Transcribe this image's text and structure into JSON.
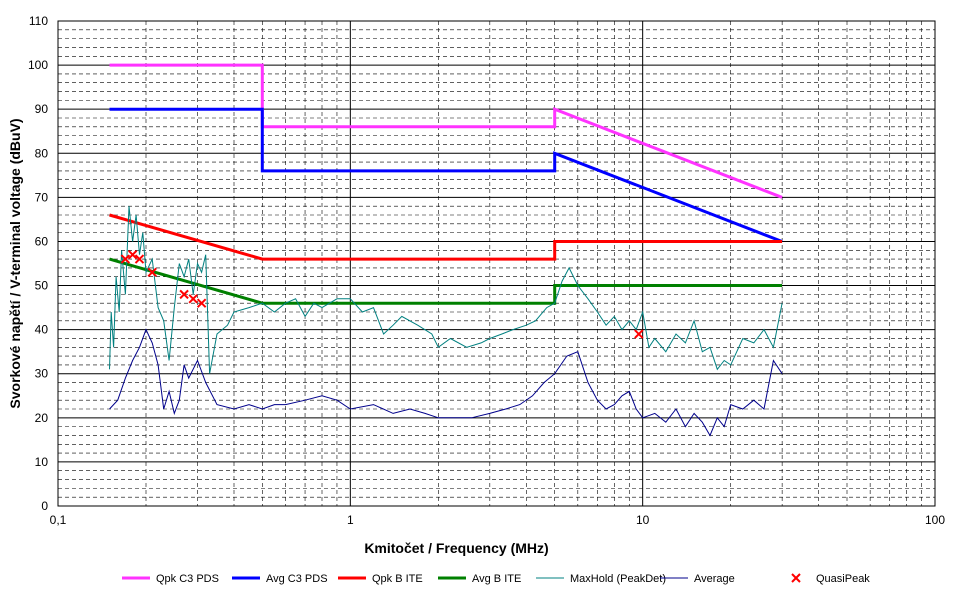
{
  "chart_data": {
    "type": "line",
    "title": "",
    "xlabel": "Kmitočet / Frequency (MHz)",
    "ylabel": "Svorkové napětí / V-terminal voltage (dBuV)",
    "x_scale": "log",
    "xlim": [
      0.1,
      100
    ],
    "ylim": [
      0,
      110
    ],
    "x_tick_labels": [
      "0,1",
      "1",
      "10",
      "100"
    ],
    "x_tick_values": [
      0.1,
      1,
      10,
      100
    ],
    "y_ticks": [
      0,
      10,
      20,
      30,
      40,
      50,
      60,
      70,
      80,
      90,
      100,
      110
    ],
    "grid": true,
    "legend_position": "bottom",
    "series": [
      {
        "name": "Qpk C3 PDS",
        "color": "#ff33ff",
        "style": "thick",
        "x": [
          0.15,
          0.5,
          0.5,
          5,
          5,
          30
        ],
        "y": [
          100,
          100,
          86,
          86,
          90,
          70
        ]
      },
      {
        "name": "Avg C3 PDS",
        "color": "#0000ff",
        "style": "thick",
        "x": [
          0.15,
          0.5,
          0.5,
          5,
          5,
          30
        ],
        "y": [
          90,
          90,
          76,
          76,
          80,
          60
        ]
      },
      {
        "name": "Qpk B ITE",
        "color": "#ff0000",
        "style": "thick",
        "x": [
          0.15,
          0.5,
          5,
          5,
          30
        ],
        "y": [
          66,
          56,
          56,
          60,
          60
        ]
      },
      {
        "name": "Avg B ITE",
        "color": "#008000",
        "style": "thick",
        "x": [
          0.15,
          0.5,
          5,
          5,
          30
        ],
        "y": [
          56,
          46,
          46,
          50,
          50
        ]
      },
      {
        "name": "MaxHold (PeakDet)",
        "color": "#008080",
        "style": "thin",
        "x": [
          0.15,
          0.152,
          0.155,
          0.158,
          0.162,
          0.165,
          0.17,
          0.175,
          0.18,
          0.185,
          0.19,
          0.195,
          0.2,
          0.21,
          0.22,
          0.23,
          0.24,
          0.25,
          0.26,
          0.27,
          0.28,
          0.29,
          0.3,
          0.31,
          0.32,
          0.33,
          0.35,
          0.38,
          0.4,
          0.45,
          0.5,
          0.55,
          0.6,
          0.65,
          0.7,
          0.75,
          0.8,
          0.9,
          1.0,
          1.1,
          1.2,
          1.3,
          1.4,
          1.5,
          1.7,
          1.9,
          2.0,
          2.2,
          2.5,
          2.8,
          3.0,
          3.3,
          3.6,
          4.0,
          4.3,
          4.7,
          5.0,
          5.3,
          5.6,
          6.0,
          6.5,
          7.0,
          7.5,
          8.0,
          8.5,
          9.0,
          9.5,
          10.0,
          10.5,
          11.0,
          12.0,
          13.0,
          14.0,
          15.0,
          16.0,
          17.0,
          18.0,
          19.0,
          20.0,
          22.0,
          24.0,
          26.0,
          28.0,
          30.0
        ],
        "y": [
          31,
          44,
          36,
          52,
          44,
          58,
          48,
          68,
          60,
          66,
          57,
          62,
          53,
          56,
          45,
          42,
          33,
          45,
          55,
          52,
          56,
          48,
          55,
          53,
          57,
          30,
          39,
          41,
          44,
          45,
          46,
          44,
          46,
          47,
          43,
          46,
          45,
          47,
          47,
          44,
          45,
          39,
          41,
          43,
          41,
          39,
          36,
          38,
          36,
          37,
          38,
          39,
          40,
          41,
          42,
          45,
          46,
          51,
          54,
          50,
          47,
          44,
          41,
          43,
          40,
          42,
          40,
          44,
          36,
          38,
          35,
          39,
          37,
          42,
          35,
          36,
          31,
          33,
          32,
          38,
          37,
          40,
          36,
          46
        ]
      },
      {
        "name": "Average",
        "color": "#00008b",
        "style": "thin",
        "x": [
          0.15,
          0.16,
          0.17,
          0.18,
          0.19,
          0.2,
          0.21,
          0.22,
          0.23,
          0.24,
          0.25,
          0.26,
          0.27,
          0.28,
          0.3,
          0.32,
          0.35,
          0.4,
          0.45,
          0.5,
          0.55,
          0.6,
          0.7,
          0.8,
          0.9,
          1.0,
          1.2,
          1.4,
          1.6,
          1.8,
          2.0,
          2.3,
          2.6,
          3.0,
          3.4,
          3.8,
          4.2,
          4.6,
          5.0,
          5.5,
          6.0,
          6.5,
          7.0,
          7.5,
          8.0,
          8.5,
          9.0,
          9.5,
          10.0,
          11.0,
          12.0,
          13.0,
          14.0,
          15.0,
          16.0,
          17.0,
          18.0,
          19.0,
          20.0,
          22.0,
          24.0,
          26.0,
          28.0,
          30.0
        ],
        "y": [
          22,
          24,
          29,
          33,
          36,
          40,
          37,
          32,
          22,
          26,
          21,
          24,
          32,
          29,
          33,
          28,
          23,
          22,
          23,
          22,
          23,
          23,
          24,
          25,
          24,
          22,
          23,
          21,
          22,
          21,
          20,
          20,
          20,
          21,
          22,
          23,
          25,
          28,
          30,
          34,
          35,
          28,
          24,
          22,
          23,
          25,
          26,
          22,
          20,
          21,
          19,
          22,
          18,
          21,
          19,
          16,
          20,
          18,
          23,
          22,
          24,
          22,
          33,
          30
        ]
      }
    ],
    "markers": {
      "name": "QuasiPeak",
      "color": "#ff0000",
      "symbol": "x",
      "x": [
        0.17,
        0.18,
        0.19,
        0.21,
        0.27,
        0.29,
        0.31,
        9.7
      ],
      "y": [
        56,
        57,
        56,
        53,
        48,
        47,
        46,
        39
      ]
    }
  }
}
